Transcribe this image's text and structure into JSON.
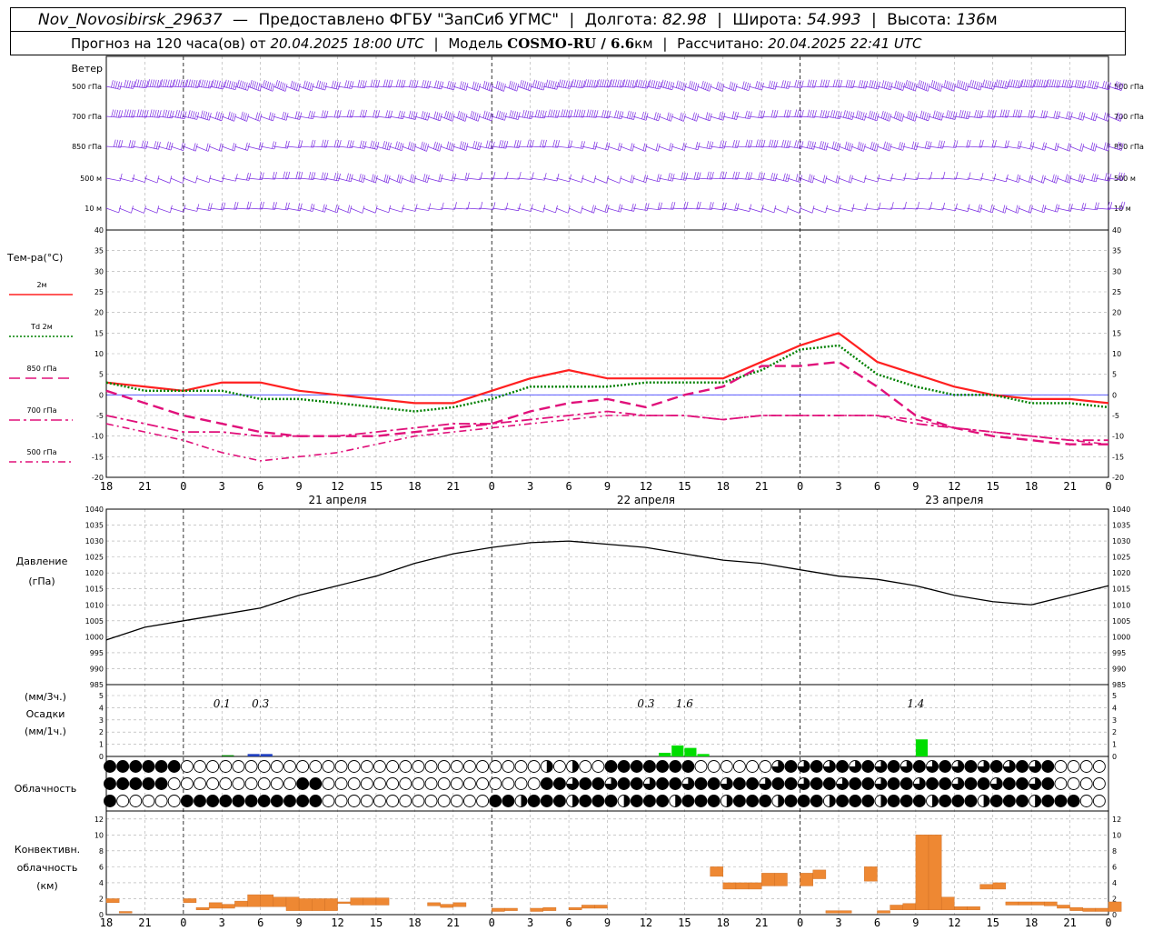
{
  "header": {
    "station": "Nov_Novosibirsk_29637",
    "dash": "—",
    "provider": "Предоставлено ФГБУ \"ЗапСиб УГМС\"",
    "lon_label": "Долгота:",
    "lon": "82.98",
    "lat_label": "Широта:",
    "lat": "54.993",
    "alt_label": "Высота:",
    "alt": "136",
    "alt_unit": "м",
    "forecast_label": "Прогноз на 120 часа(ов)",
    "from_label": "от",
    "issued": "20.04.2025 18:00 UTC",
    "model_label": "Модель",
    "model": "COSMO-RU / 6.6",
    "model_unit": "км",
    "calc_label": "Рассчитано:",
    "calc": "20.04.2025 22:41 UTC"
  },
  "wind_panel": {
    "title": "Ветер",
    "levels": [
      "500 гПа",
      "700 гПа",
      "850 гПа",
      "500 м",
      "10  м"
    ]
  },
  "temp_panel": {
    "title": "Тем-ра(°С)",
    "legend": [
      {
        "label": "2м",
        "color": "#ff2020",
        "style": "solid"
      },
      {
        "label": "Td  2м",
        "color": "#008000",
        "style": "dotted"
      },
      {
        "label": "850 гПа",
        "color": "#e0107a",
        "style": "dashed"
      },
      {
        "label": "700 гПа",
        "color": "#e0107a",
        "style": "dashdot"
      },
      {
        "label": "500 гПа",
        "color": "#e0107a",
        "style": "dashed-fine"
      }
    ]
  },
  "pressure_panel": {
    "title": "Давление",
    "unit": "(гПа)"
  },
  "precip_panel": {
    "unit3": "(мм/3ч.)",
    "title": "Осадки",
    "unit1": "(мм/1ч.)",
    "totals": [
      {
        "label": "0.1",
        "hour": 9
      },
      {
        "label": "0.3",
        "hour": 12
      },
      {
        "label": "0.3",
        "hour": 42
      },
      {
        "label": "1.6",
        "hour": 45
      },
      {
        "label": "1.4",
        "hour": 63
      }
    ]
  },
  "cloud_panel": {
    "title": "Облачность"
  },
  "conv_panel": {
    "title1": "Конвективн.",
    "title2": "облачность",
    "unit": "(км)"
  },
  "x_axis": {
    "hour_labels": [
      "18",
      "21",
      "0",
      "3",
      "6",
      "9",
      "12",
      "15",
      "18",
      "21",
      "0",
      "3",
      "6",
      "9",
      "12",
      "15",
      "18",
      "21",
      "0",
      "3",
      "6",
      "9",
      "12",
      "15",
      "18",
      "21",
      "0"
    ],
    "day_labels": [
      "21 апреля",
      "22 апреля",
      "23 апреля"
    ]
  },
  "chart_data": [
    {
      "type": "line",
      "title": "Тем-ра(°С)",
      "ylim": [
        -20,
        40
      ],
      "x_hours_from_start": [
        0,
        3,
        6,
        9,
        12,
        15,
        18,
        21,
        24,
        27,
        30,
        33,
        36,
        39,
        42,
        45,
        48,
        51,
        54,
        57,
        60,
        63,
        66,
        69,
        72,
        75,
        78
      ],
      "series": [
        {
          "name": "2м",
          "color": "#ff2020",
          "values": [
            3,
            2,
            1,
            3,
            3,
            1,
            0,
            -1,
            -2,
            -2,
            1,
            4,
            6,
            4,
            4,
            4,
            4,
            8,
            12,
            15,
            8,
            5,
            2,
            0,
            -1,
            -1,
            -2
          ]
        },
        {
          "name": "Td  2м",
          "color": "#008000",
          "values": [
            3,
            1,
            1,
            1,
            -1,
            -1,
            -2,
            -3,
            -4,
            -3,
            -1,
            2,
            2,
            2,
            3,
            3,
            3,
            6,
            11,
            12,
            5,
            2,
            0,
            0,
            -2,
            -2,
            -3
          ]
        },
        {
          "name": "850 гПа",
          "color": "#e0107a",
          "values": [
            1,
            -2,
            -5,
            -7,
            -9,
            -10,
            -10,
            -10,
            -9,
            -8,
            -7,
            -4,
            -2,
            -1,
            -3,
            0,
            2,
            7,
            7,
            8,
            2,
            -5,
            -8,
            -10,
            -11,
            -12,
            -12
          ]
        },
        {
          "name": "700 гПа",
          "color": "#e0107a",
          "values": [
            -5,
            -7,
            -9,
            -9,
            -10,
            -10,
            -10,
            -9,
            -8,
            -7,
            -7,
            -6,
            -5,
            -4,
            -5,
            -5,
            -6,
            -5,
            -5,
            -5,
            -5,
            -7,
            -8,
            -9,
            -10,
            -11,
            -11
          ]
        },
        {
          "name": "500 гПа",
          "color": "#e0107a",
          "values": [
            -7,
            -9,
            -11,
            -14,
            -16,
            -15,
            -14,
            -12,
            -10,
            -9,
            -8,
            -7,
            -6,
            -5,
            -5,
            -5,
            -6,
            -5,
            -5,
            -5,
            -5,
            -6,
            -8,
            -9,
            -10,
            -11,
            -12
          ]
        }
      ]
    },
    {
      "type": "line",
      "title": "Давление",
      "ylabel": "(гПа)",
      "ylim": [
        985,
        1040
      ],
      "x_hours_from_start": [
        0,
        3,
        6,
        9,
        12,
        15,
        18,
        21,
        24,
        27,
        30,
        33,
        36,
        39,
        42,
        45,
        48,
        51,
        54,
        57,
        60,
        63,
        66,
        69,
        72,
        75,
        78
      ],
      "series": [
        {
          "name": "",
          "color": "#000000",
          "values": [
            999,
            1003,
            1005,
            1007,
            1009,
            1013,
            1016,
            1019,
            1023,
            1026,
            1028,
            1029.5,
            1030,
            1029,
            1028,
            1026,
            1024,
            1023,
            1021,
            1019,
            1018,
            1016,
            1013,
            1011,
            1010,
            1013,
            1016
          ]
        }
      ]
    },
    {
      "type": "bar",
      "title": "Осадки",
      "ylabel": "(мм/1ч.)",
      "ylim": [
        0,
        5
      ],
      "bars": [
        {
          "hour": 9.5,
          "value": 0.1,
          "color": "#008000"
        },
        {
          "hour": 11.5,
          "value": 0.2,
          "color": "#1f3fbf"
        },
        {
          "hour": 12.5,
          "value": 0.2,
          "color": "#1f3fbf"
        },
        {
          "hour": 43.5,
          "value": 0.3,
          "color": "#00dd00"
        },
        {
          "hour": 44.5,
          "value": 0.9,
          "color": "#00dd00"
        },
        {
          "hour": 45.5,
          "value": 0.7,
          "color": "#00dd00"
        },
        {
          "hour": 46.5,
          "value": 0.2,
          "color": "#00dd00"
        },
        {
          "hour": 63.5,
          "value": 1.4,
          "color": "#00dd00"
        }
      ]
    },
    {
      "type": "bar",
      "title": "Конвективн. облачность",
      "ylabel": "(км)",
      "ylim": [
        0,
        13
      ],
      "color": "#ee8833",
      "bars": [
        {
          "hour": 0.5,
          "bottom": 1.5,
          "top": 2.0
        },
        {
          "hour": 1.5,
          "bottom": 0.2,
          "top": 0.4
        },
        {
          "hour": 6.5,
          "bottom": 1.5,
          "top": 2.0
        },
        {
          "hour": 7.5,
          "bottom": 0.6,
          "top": 0.9
        },
        {
          "hour": 8.5,
          "bottom": 0.8,
          "top": 1.5
        },
        {
          "hour": 9.5,
          "bottom": 0.8,
          "top": 1.3
        },
        {
          "hour": 10.5,
          "bottom": 1.0,
          "top": 1.7
        },
        {
          "hour": 11.5,
          "bottom": 1.0,
          "top": 2.5
        },
        {
          "hour": 12.5,
          "bottom": 1.0,
          "top": 2.5
        },
        {
          "hour": 13.5,
          "bottom": 1.0,
          "top": 2.2
        },
        {
          "hour": 14.5,
          "bottom": 0.5,
          "top": 2.2
        },
        {
          "hour": 15.5,
          "bottom": 0.5,
          "top": 2.0
        },
        {
          "hour": 16.5,
          "bottom": 0.5,
          "top": 2.0
        },
        {
          "hour": 17.5,
          "bottom": 0.5,
          "top": 2.0
        },
        {
          "hour": 18.5,
          "bottom": 1.4,
          "top": 1.6
        },
        {
          "hour": 19.5,
          "bottom": 1.2,
          "top": 2.1
        },
        {
          "hour": 20.5,
          "bottom": 1.2,
          "top": 2.1
        },
        {
          "hour": 21.5,
          "bottom": 1.2,
          "top": 2.1
        },
        {
          "hour": 25.5,
          "bottom": 1.1,
          "top": 1.5
        },
        {
          "hour": 26.5,
          "bottom": 0.9,
          "top": 1.3
        },
        {
          "hour": 27.5,
          "bottom": 1.0,
          "top": 1.5
        },
        {
          "hour": 30.5,
          "bottom": 0.4,
          "top": 0.8
        },
        {
          "hour": 31.5,
          "bottom": 0.5,
          "top": 0.8
        },
        {
          "hour": 33.5,
          "bottom": 0.4,
          "top": 0.8
        },
        {
          "hour": 34.5,
          "bottom": 0.5,
          "top": 0.9
        },
        {
          "hour": 36.5,
          "bottom": 0.6,
          "top": 0.9
        },
        {
          "hour": 37.5,
          "bottom": 0.8,
          "top": 1.2
        },
        {
          "hour": 38.5,
          "bottom": 0.8,
          "top": 1.2
        },
        {
          "hour": 47.5,
          "bottom": 4.8,
          "top": 6.0
        },
        {
          "hour": 48.5,
          "bottom": 3.2,
          "top": 4.0
        },
        {
          "hour": 49.5,
          "bottom": 3.2,
          "top": 4.0
        },
        {
          "hour": 50.5,
          "bottom": 3.2,
          "top": 4.0
        },
        {
          "hour": 51.5,
          "bottom": 3.6,
          "top": 5.2
        },
        {
          "hour": 52.5,
          "bottom": 3.6,
          "top": 5.2
        },
        {
          "hour": 54.5,
          "bottom": 3.6,
          "top": 5.2
        },
        {
          "hour": 55.5,
          "bottom": 4.5,
          "top": 5.6
        },
        {
          "hour": 56.5,
          "bottom": 0.2,
          "top": 0.5
        },
        {
          "hour": 57.5,
          "bottom": 0.2,
          "top": 0.5
        },
        {
          "hour": 59.5,
          "bottom": 4.2,
          "top": 6.0
        },
        {
          "hour": 60.5,
          "bottom": 0.2,
          "top": 0.5
        },
        {
          "hour": 61.5,
          "bottom": 0.6,
          "top": 1.2
        },
        {
          "hour": 62.5,
          "bottom": 0.6,
          "top": 1.4
        },
        {
          "hour": 63.5,
          "bottom": 0.6,
          "top": 10.0
        },
        {
          "hour": 64.5,
          "bottom": 0.6,
          "top": 10.0
        },
        {
          "hour": 65.5,
          "bottom": 0.6,
          "top": 2.2
        },
        {
          "hour": 66.5,
          "bottom": 0.6,
          "top": 1.0
        },
        {
          "hour": 67.5,
          "bottom": 0.6,
          "top": 1.0
        },
        {
          "hour": 68.5,
          "bottom": 3.2,
          "top": 3.8
        },
        {
          "hour": 69.5,
          "bottom": 3.2,
          "top": 4.0
        },
        {
          "hour": 70.5,
          "bottom": 1.2,
          "top": 1.6
        },
        {
          "hour": 71.5,
          "bottom": 1.2,
          "top": 1.6
        },
        {
          "hour": 72.5,
          "bottom": 1.2,
          "top": 1.6
        },
        {
          "hour": 73.5,
          "bottom": 1.1,
          "top": 1.6
        },
        {
          "hour": 74.5,
          "bottom": 0.8,
          "top": 1.2
        },
        {
          "hour": 75.5,
          "bottom": 0.5,
          "top": 0.9
        },
        {
          "hour": 76.5,
          "bottom": 0.4,
          "top": 0.8
        },
        {
          "hour": 77.5,
          "bottom": 0.4,
          "top": 0.8
        },
        {
          "hour": 78.5,
          "bottom": 0.4,
          "top": 1.6
        }
      ]
    }
  ]
}
